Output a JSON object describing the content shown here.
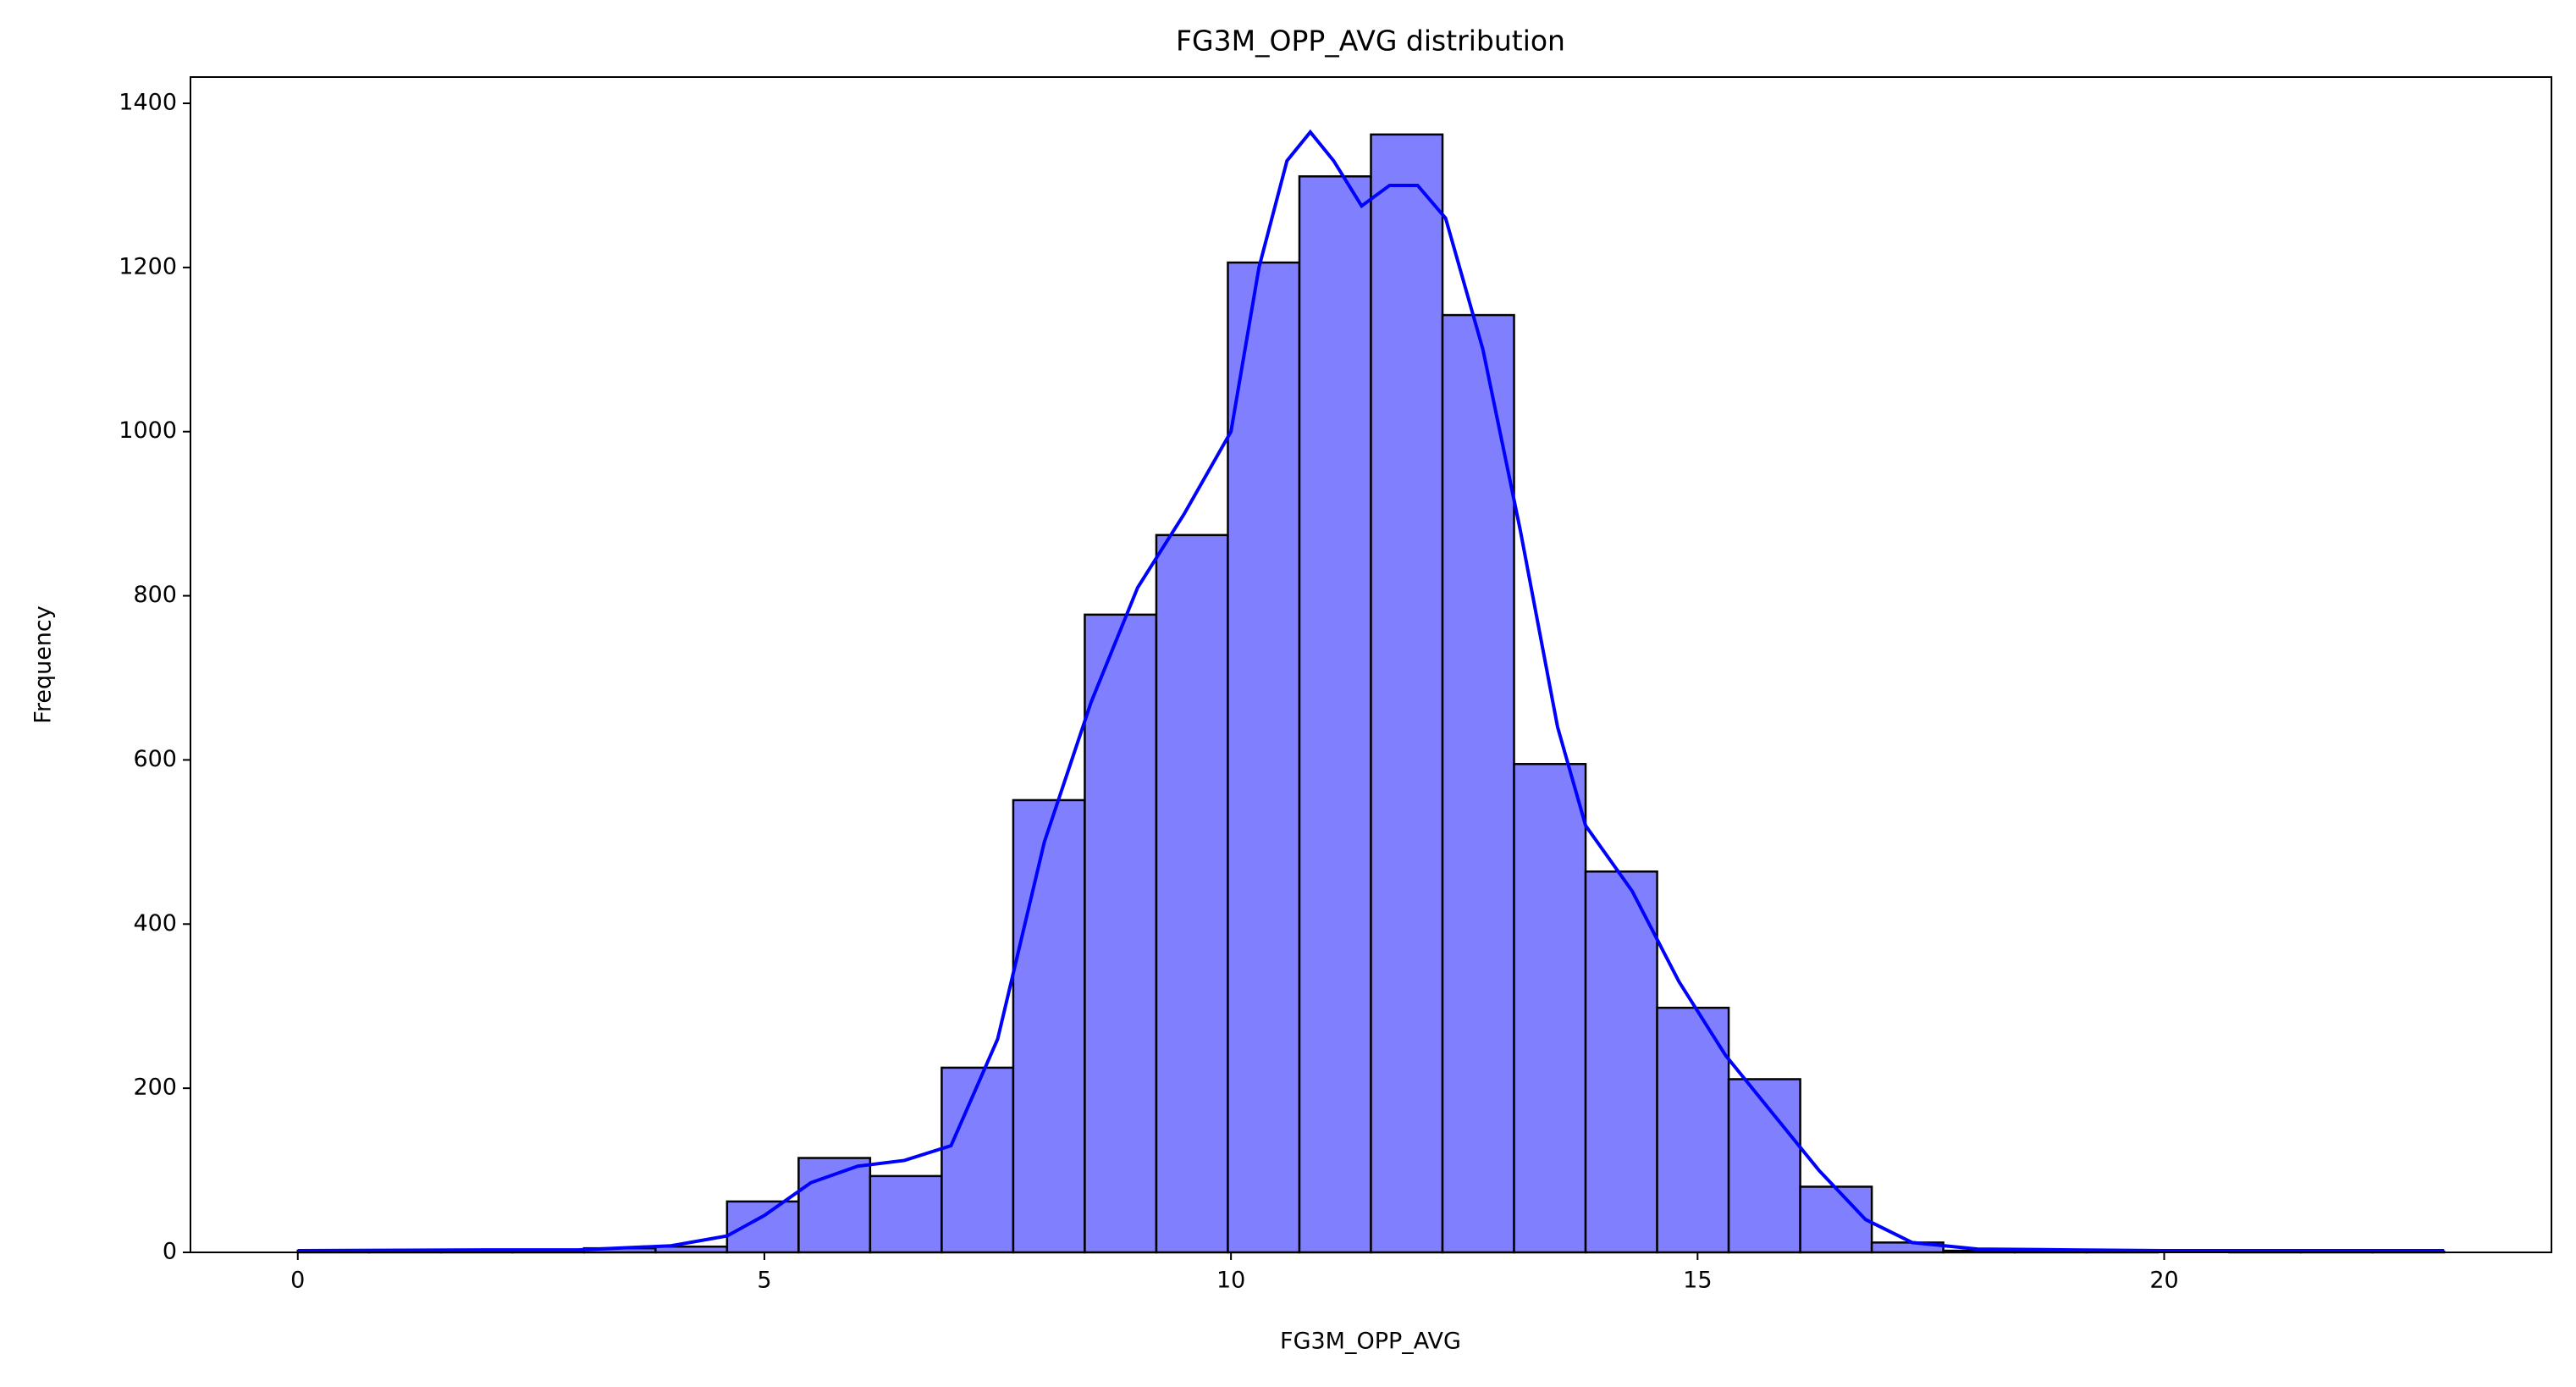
{
  "chart_data": {
    "type": "histogram",
    "title": "FG3M_OPP_AVG distribution",
    "xlabel": "FG3M_OPP_AVG",
    "ylabel": "Frequency",
    "bins": [
      0,
      0.7667,
      1.5333,
      2.3,
      3.0667,
      3.8333,
      4.6,
      5.3667,
      6.1333,
      6.9,
      7.6667,
      8.4333,
      9.2,
      9.9667,
      10.7333,
      11.5,
      12.2667,
      13.0333,
      13.8,
      14.5667,
      15.3333,
      16.1,
      16.8667,
      17.6333,
      18.4,
      19.1667,
      19.9333,
      20.7,
      21.4667,
      22.2333,
      23
    ],
    "counts": [
      2,
      1,
      2,
      1,
      5,
      7,
      62,
      115,
      93,
      225,
      551,
      777,
      874,
      1206,
      1311,
      1362,
      1142,
      595,
      464,
      298,
      211,
      80,
      12,
      2,
      1,
      1,
      0,
      1,
      1,
      1
    ],
    "color": "#8080ff",
    "edgecolor": "#000000",
    "kde": {
      "color": "#0000ff",
      "x": [
        0,
        2,
        3,
        4,
        4.6,
        5,
        5.5,
        6,
        6.5,
        7,
        7.5,
        8,
        8.5,
        9,
        9.5,
        10,
        10.3,
        10.6,
        10.85,
        11.1,
        11.4,
        11.7,
        12,
        12.3,
        12.7,
        13.1,
        13.5,
        13.8,
        14.3,
        14.8,
        15.3,
        15.8,
        16.3,
        16.8,
        17.3,
        18,
        19,
        20,
        21,
        23
      ],
      "y": [
        2,
        3,
        3,
        8,
        20,
        45,
        85,
        105,
        112,
        130,
        260,
        500,
        670,
        810,
        900,
        1000,
        1200,
        1330,
        1365,
        1330,
        1275,
        1300,
        1300,
        1260,
        1100,
        880,
        640,
        520,
        440,
        330,
        240,
        170,
        100,
        40,
        12,
        4,
        3,
        2,
        2,
        2
      ]
    },
    "xlim": [
      -1.15,
      24.15
    ],
    "ylim": [
      0,
      1432
    ],
    "xticks": [
      0,
      5,
      10,
      15,
      20
    ],
    "yticks": [
      0,
      200,
      400,
      600,
      800,
      1000,
      1200,
      1400
    ]
  }
}
